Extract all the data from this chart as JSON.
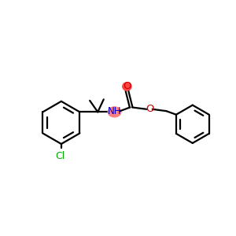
{
  "bg_color": "#ffffff",
  "line_color": "#000000",
  "bond_width": 1.6,
  "N_color": "#0000cc",
  "O_color": "#cc0000",
  "Cl_color": "#00aa00",
  "NH_highlight": "#ff8080",
  "O_highlight": "#ff4444",
  "figsize": [
    3.0,
    3.0
  ],
  "dpi": 100,
  "xlim": [
    0,
    10
  ],
  "ylim": [
    1,
    8.5
  ]
}
